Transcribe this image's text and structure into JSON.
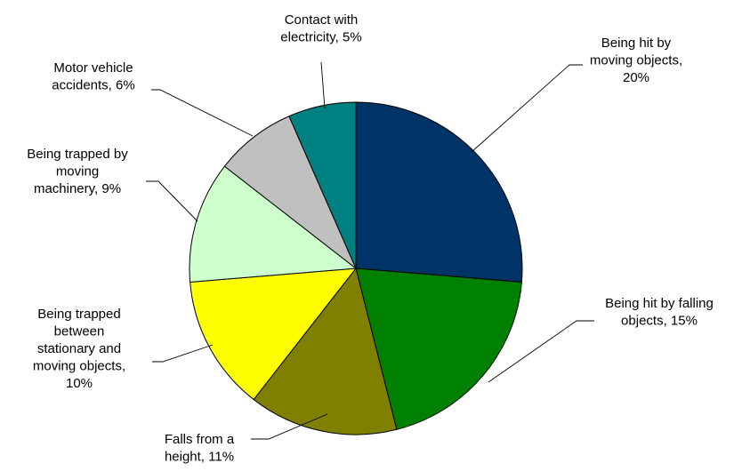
{
  "chart_data": {
    "type": "pie",
    "slices": [
      {
        "label": "Being hit by moving objects, 20%",
        "lines": [
          "Being hit by",
          "moving objects,",
          "20%"
        ],
        "value": 20,
        "color": "#003366"
      },
      {
        "label": "Being hit by falling objects, 15%",
        "lines": [
          "Being hit by falling",
          "objects, 15%"
        ],
        "value": 15,
        "color": "#008000"
      },
      {
        "label": "Falls from a height, 11%",
        "lines": [
          "Falls from a",
          "height, 11%"
        ],
        "value": 11,
        "color": "#808000"
      },
      {
        "label": "Being trapped between stationary and moving objects, 10%",
        "lines": [
          "Being trapped",
          "between",
          "stationary and",
          "moving objects,",
          "10%"
        ],
        "value": 10,
        "color": "#FFFF00"
      },
      {
        "label": "Being trapped by moving machinery, 9%",
        "lines": [
          "Being trapped by",
          "moving",
          "machinery, 9%"
        ],
        "value": 9,
        "color": "#CCFFCC"
      },
      {
        "label": "Motor vehicle accidents, 6%",
        "lines": [
          "Motor vehicle",
          "accidents, 6%"
        ],
        "value": 6,
        "color": "#C0C0C0"
      },
      {
        "label": "Contact with electricity, 5%",
        "lines": [
          "Contact with",
          "electricity, 5%"
        ],
        "value": 5,
        "color": "#008080"
      }
    ],
    "legend": "none",
    "data_labels": "outside with leader lines"
  }
}
